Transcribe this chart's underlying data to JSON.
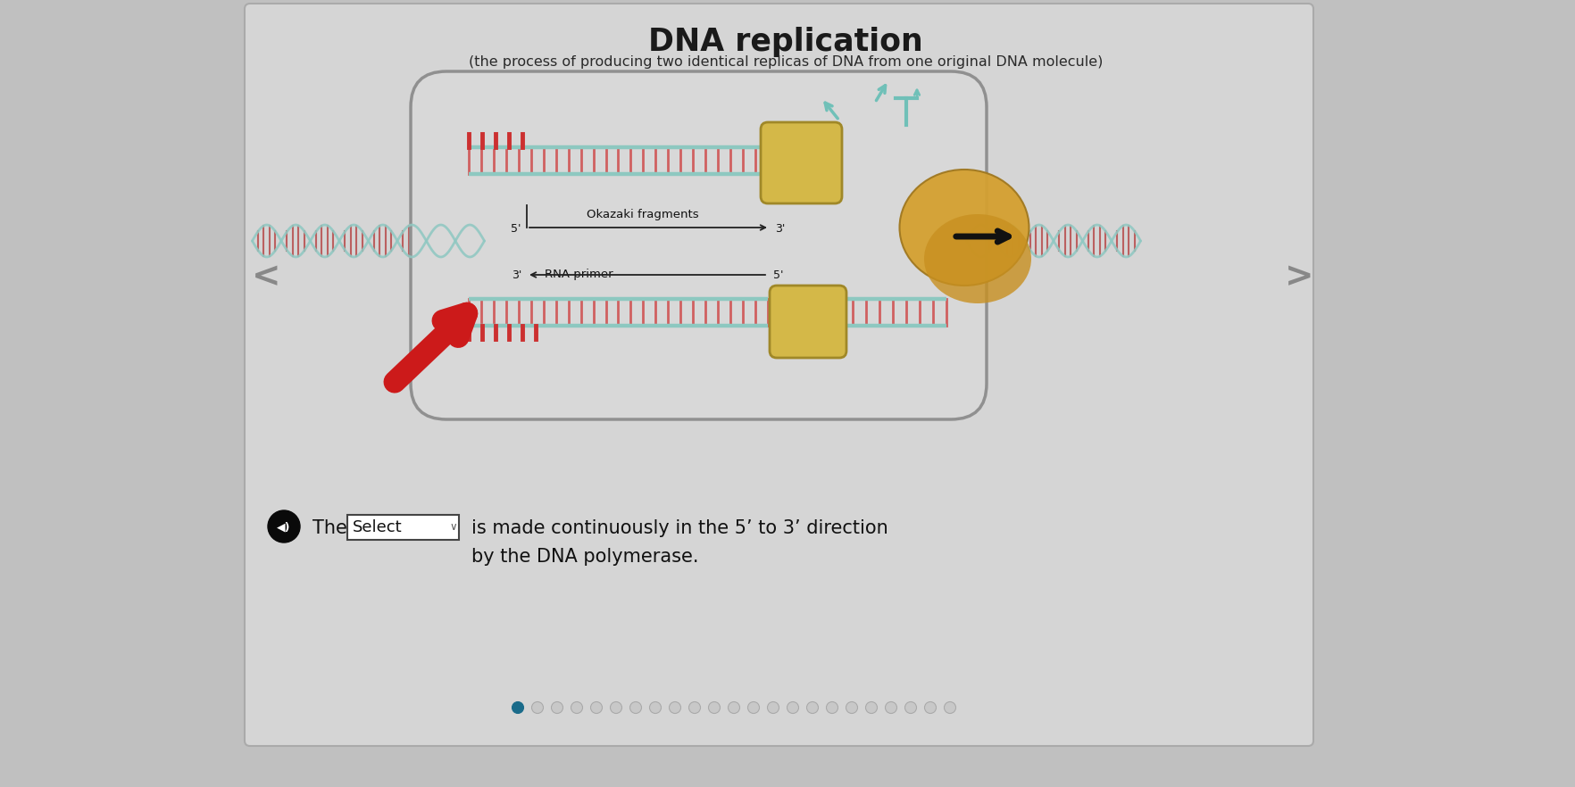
{
  "title": "DNA replication",
  "subtitle": "(the process of producing two identical replicas of DNA from one original DNA molecule)",
  "bg_outer": "#c0c0c0",
  "bg_panel": "#d5d5d5",
  "panel_border": "#aaaaaa",
  "dna_teal": "#8dc8c0",
  "dna_rung_red": "#d06060",
  "okazaki_label": "Okazaki fragments",
  "rna_label": "RNA primer",
  "helicase_color": "#d4a840",
  "helicase_edge": "#b08828",
  "pcna_color": "#d4b848",
  "pcna_edge": "#a08828",
  "red_arrow_color": "#cc1a1a",
  "black_arrow_color": "#111111",
  "select_text": "Select",
  "sentence1": "is made continuously in the 5’ to 3’ direction",
  "sentence2": "by the DNA polymerase.",
  "num_dots": 23,
  "active_dot_color": "#1a6b8a",
  "inactive_dot_color": "#c8c8c8",
  "nav_color": "#888888",
  "bubble_bg": "#d8d8d8",
  "bubble_border": "#909090",
  "gyrase_color": "#70c0b8"
}
